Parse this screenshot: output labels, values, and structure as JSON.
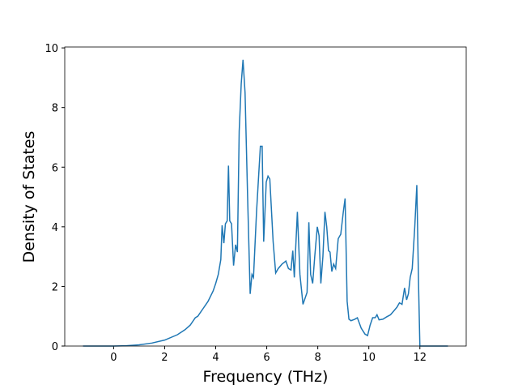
{
  "chart_data": {
    "type": "line",
    "x_label": "Frequency (THz)",
    "y_label": "Density of States",
    "x": [
      -1.2,
      0,
      0.5,
      1,
      1.5,
      2,
      2.5,
      2.8,
      3,
      3.2,
      3.3,
      3.5,
      3.7,
      3.9,
      4.0,
      4.1,
      4.2,
      4.25,
      4.32,
      4.38,
      4.45,
      4.5,
      4.55,
      4.62,
      4.7,
      4.78,
      4.85,
      4.92,
      5.0,
      5.07,
      5.15,
      5.25,
      5.35,
      5.42,
      5.48,
      5.6,
      5.75,
      5.82,
      5.88,
      5.98,
      6.05,
      6.12,
      6.25,
      6.35,
      6.45,
      6.6,
      6.75,
      6.85,
      6.95,
      7.02,
      7.08,
      7.2,
      7.3,
      7.42,
      7.5,
      7.58,
      7.65,
      7.72,
      7.8,
      7.88,
      7.98,
      8.05,
      8.12,
      8.2,
      8.28,
      8.35,
      8.42,
      8.48,
      8.55,
      8.62,
      8.7,
      8.8,
      8.9,
      9.0,
      9.07,
      9.15,
      9.22,
      9.3,
      9.45,
      9.55,
      9.7,
      9.85,
      9.95,
      10.05,
      10.15,
      10.25,
      10.32,
      10.4,
      10.55,
      10.7,
      10.85,
      11.0,
      11.1,
      11.2,
      11.3,
      11.4,
      11.48,
      11.55,
      11.62,
      11.7,
      11.8,
      11.88,
      11.95,
      12.0,
      12.1,
      13.1
    ],
    "series": [
      {
        "name": "DOS",
        "color": "#1f77b4",
        "values": [
          0,
          0,
          0.01,
          0.04,
          0.1,
          0.2,
          0.38,
          0.55,
          0.7,
          0.95,
          1.0,
          1.25,
          1.5,
          1.85,
          2.1,
          2.4,
          2.9,
          4.05,
          3.45,
          4.1,
          4.2,
          6.05,
          4.2,
          4.1,
          2.7,
          3.4,
          3.15,
          7.2,
          8.8,
          9.6,
          8.5,
          5.0,
          1.75,
          2.4,
          2.3,
          4.5,
          6.7,
          6.7,
          3.5,
          5.5,
          5.7,
          5.6,
          3.5,
          2.45,
          2.6,
          2.75,
          2.85,
          2.6,
          2.55,
          3.2,
          2.3,
          4.5,
          2.4,
          1.4,
          1.6,
          1.8,
          4.15,
          2.4,
          2.1,
          3.0,
          4.0,
          3.7,
          2.1,
          3.0,
          4.5,
          4.0,
          3.2,
          3.15,
          2.5,
          2.75,
          2.6,
          3.6,
          3.75,
          4.5,
          4.95,
          1.5,
          0.9,
          0.85,
          0.9,
          0.95,
          0.6,
          0.4,
          0.35,
          0.7,
          0.95,
          0.95,
          1.05,
          0.88,
          0.9,
          0.98,
          1.05,
          1.2,
          1.3,
          1.45,
          1.4,
          1.95,
          1.55,
          1.75,
          2.3,
          2.6,
          4.0,
          5.4,
          2.0,
          0,
          0,
          0
        ]
      }
    ],
    "xlim": [
      -1.915,
      13.815
    ],
    "ylim": [
      0,
      10.03
    ],
    "xticks": [
      0,
      2,
      4,
      6,
      8,
      10,
      12
    ],
    "yticks": [
      0,
      2,
      4,
      6,
      8,
      10
    ]
  }
}
